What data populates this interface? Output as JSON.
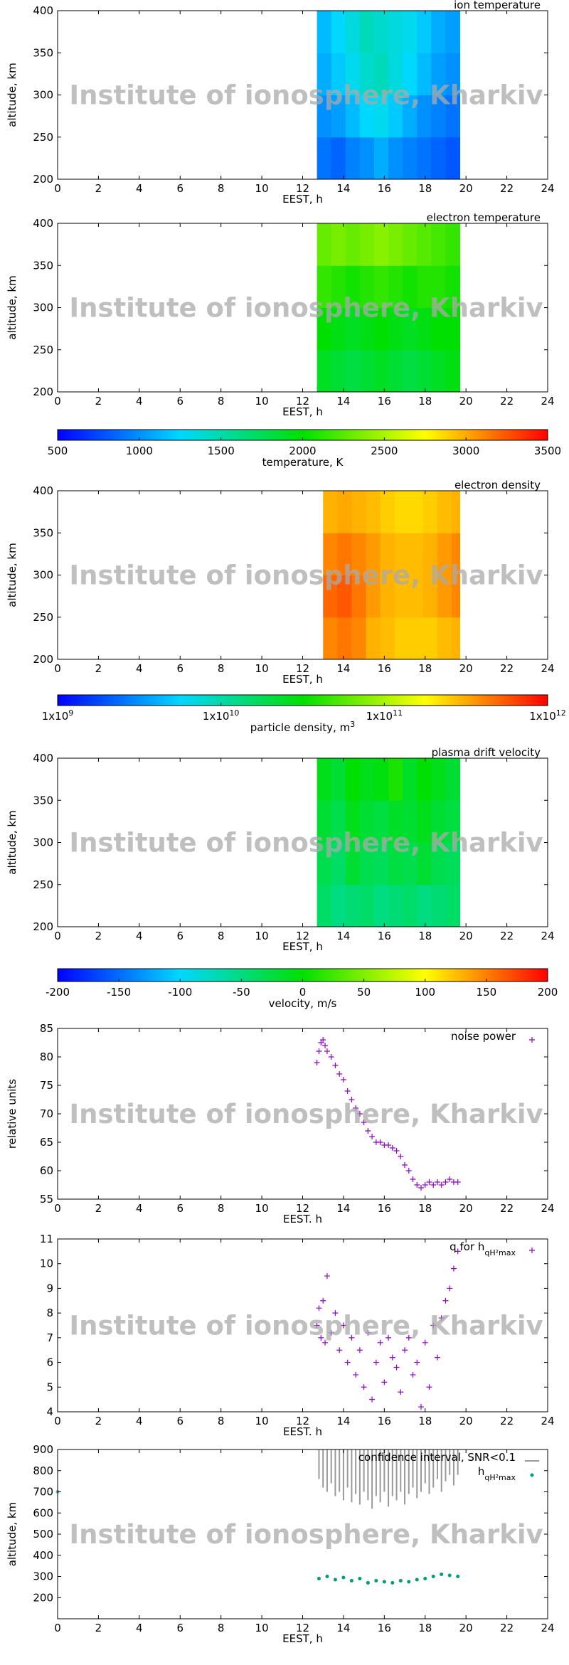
{
  "chart_data": [
    {
      "type": "heatmap",
      "title": "ion temperature",
      "xlabel": "EEST, h",
      "ylabel": "altitude, km",
      "watermark": "Institute of ionosphere, Kharkiv",
      "xlim": [
        0,
        24
      ],
      "xticks": [
        0,
        2,
        4,
        6,
        8,
        10,
        12,
        14,
        16,
        18,
        20,
        22,
        24
      ],
      "ylim": [
        200,
        400
      ],
      "yticks": [
        200,
        250,
        300,
        350,
        400
      ],
      "x_bins": [
        12.7,
        13.4,
        14.1,
        14.8,
        15.5,
        16.2,
        16.9,
        17.6,
        18.3,
        19.0,
        19.7
      ],
      "y_bins": [
        200,
        250,
        300,
        350,
        400
      ],
      "z": [
        [
          900,
          850,
          950,
          1000,
          1100,
          1000,
          950,
          900,
          850,
          800
        ],
        [
          1000,
          1050,
          1150,
          1250,
          1300,
          1200,
          1100,
          1000,
          950,
          900
        ],
        [
          1100,
          1200,
          1300,
          1400,
          1450,
          1350,
          1250,
          1150,
          1050,
          1000
        ],
        [
          1150,
          1250,
          1350,
          1450,
          1400,
          1350,
          1300,
          1200,
          1100,
          1050
        ]
      ]
    },
    {
      "type": "heatmap",
      "title": "electron temperature",
      "xlabel": "EEST, h",
      "ylabel": "altitude, km",
      "watermark": "Institute of ionosphere, Kharkiv",
      "xlim": [
        0,
        24
      ],
      "xticks": [
        0,
        2,
        4,
        6,
        8,
        10,
        12,
        14,
        16,
        18,
        20,
        22,
        24
      ],
      "ylim": [
        200,
        400
      ],
      "yticks": [
        200,
        250,
        300,
        350,
        400
      ],
      "x_bins": [
        12.7,
        13.4,
        14.1,
        14.8,
        15.5,
        16.2,
        16.9,
        17.6,
        18.3,
        19.0,
        19.7
      ],
      "y_bins": [
        200,
        250,
        300,
        350,
        400
      ],
      "z": [
        [
          1900,
          1850,
          1800,
          1850,
          1900,
          1850,
          1800,
          1850,
          1900,
          1950
        ],
        [
          2000,
          1950,
          1900,
          1950,
          2000,
          1950,
          1900,
          1950,
          2000,
          2000
        ],
        [
          2150,
          2100,
          2050,
          2100,
          2150,
          2100,
          2050,
          2100,
          2100,
          2050
        ],
        [
          2300,
          2350,
          2300,
          2350,
          2400,
          2350,
          2300,
          2250,
          2200,
          2150
        ]
      ]
    },
    {
      "type": "colorbar",
      "label": "temperature, K",
      "zlim": [
        500,
        3500
      ],
      "zticks": [
        500,
        1000,
        1500,
        2000,
        2500,
        3000,
        3500
      ],
      "colormap": [
        "#0000ff",
        "#00d8ff",
        "#00e000",
        "#ffff00",
        "#ff0000"
      ]
    },
    {
      "type": "heatmap",
      "title": "electron density",
      "xlabel": "EEST, h",
      "ylabel": "altitude, km",
      "watermark": "Institute of ionosphere, Kharkiv",
      "xlim": [
        0,
        24
      ],
      "xticks": [
        0,
        2,
        4,
        6,
        8,
        10,
        12,
        14,
        16,
        18,
        20,
        22,
        24
      ],
      "ylim": [
        200,
        400
      ],
      "yticks": [
        200,
        250,
        300,
        350,
        400
      ],
      "x_bins": [
        13.0,
        13.7,
        14.4,
        15.1,
        15.8,
        16.5,
        17.2,
        17.9,
        18.6,
        19.3,
        19.7
      ],
      "y_bins": [
        200,
        250,
        300,
        350,
        400
      ],
      "z": [
        [
          400000000000.0,
          450000000000.0,
          400000000000.0,
          300000000000.0,
          280000000000.0,
          250000000000.0,
          250000000000.0,
          250000000000.0,
          280000000000.0,
          300000000000.0
        ],
        [
          500000000000.0,
          550000000000.0,
          450000000000.0,
          350000000000.0,
          300000000000.0,
          280000000000.0,
          280000000000.0,
          300000000000.0,
          350000000000.0,
          400000000000.0
        ],
        [
          400000000000.0,
          450000000000.0,
          400000000000.0,
          350000000000.0,
          300000000000.0,
          280000000000.0,
          280000000000.0,
          300000000000.0,
          350000000000.0,
          400000000000.0
        ],
        [
          300000000000.0,
          320000000000.0,
          300000000000.0,
          280000000000.0,
          250000000000.0,
          230000000000.0,
          230000000000.0,
          250000000000.0,
          280000000000.0,
          300000000000.0
        ]
      ]
    },
    {
      "type": "colorbar",
      "label": "particle density, m",
      "label_exponent": "3",
      "log": true,
      "zlim": [
        1000000000.0,
        1000000000000.0
      ],
      "zticks": [
        {
          "value": 1000000000.0,
          "label": "1x10",
          "exponent": "9"
        },
        {
          "value": 10000000000.0,
          "label": "1x10",
          "exponent": "10"
        },
        {
          "value": 100000000000.0,
          "label": "1x10",
          "exponent": "11"
        },
        {
          "value": 1000000000000.0,
          "label": "1x10",
          "exponent": "12"
        }
      ],
      "colormap": [
        "#0000ff",
        "#00d8ff",
        "#00e000",
        "#ffff00",
        "#ff0000"
      ]
    },
    {
      "type": "heatmap",
      "title": "plasma drift velocity",
      "xlabel": "EEST, h",
      "ylabel": "altitude, km",
      "watermark": "Institute of ionosphere, Kharkiv",
      "xlim": [
        0,
        24
      ],
      "xticks": [
        0,
        2,
        4,
        6,
        8,
        10,
        12,
        14,
        16,
        18,
        20,
        22,
        24
      ],
      "ylim": [
        200,
        400
      ],
      "yticks": [
        200,
        250,
        300,
        350,
        400
      ],
      "x_bins": [
        12.7,
        13.4,
        14.1,
        14.8,
        15.5,
        16.2,
        16.9,
        17.6,
        18.3,
        19.0,
        19.7
      ],
      "y_bins": [
        200,
        250,
        300,
        350,
        400
      ],
      "z": [
        [
          -40,
          -50,
          -45,
          -40,
          -50,
          -45,
          -40,
          -50,
          -45,
          -40
        ],
        [
          -30,
          -40,
          -20,
          -30,
          -35,
          -25,
          -30,
          -20,
          -30,
          -35
        ],
        [
          -20,
          -30,
          -10,
          -20,
          -25,
          -15,
          -20,
          -10,
          -20,
          -25
        ],
        [
          -10,
          -20,
          0,
          -10,
          -5,
          10,
          -15,
          0,
          -10,
          -20
        ]
      ]
    },
    {
      "type": "colorbar",
      "label": "velocity, m/s",
      "zlim": [
        -200,
        200
      ],
      "zticks": [
        -200,
        -150,
        -100,
        -50,
        0,
        50,
        100,
        150,
        200
      ],
      "colormap": [
        "#0000ff",
        "#00d8ff",
        "#00e000",
        "#ffff00",
        "#ff0000"
      ]
    },
    {
      "type": "scatter",
      "xlabel": "EEST. h",
      "ylabel": "relative units",
      "watermark": "Institute of ionosphere, Kharkiv",
      "xlim": [
        0,
        24
      ],
      "xticks": [
        0,
        2,
        4,
        6,
        8,
        10,
        12,
        14,
        16,
        18,
        20,
        22,
        24
      ],
      "ylim": [
        55,
        85
      ],
      "yticks": [
        55,
        60,
        65,
        70,
        75,
        80,
        85
      ],
      "series": [
        {
          "name": "noise power",
          "style": "plus",
          "color": "#9400d3",
          "x": [
            12.7,
            12.8,
            12.9,
            13.0,
            13.1,
            13.2,
            13.4,
            13.6,
            13.8,
            14.0,
            14.2,
            14.4,
            14.6,
            14.8,
            15.0,
            15.2,
            15.4,
            15.6,
            15.8,
            16.0,
            16.2,
            16.4,
            16.6,
            16.8,
            17.0,
            17.2,
            17.4,
            17.6,
            17.8,
            18.0,
            18.2,
            18.4,
            18.6,
            18.8,
            19.0,
            19.2,
            19.4,
            19.6
          ],
          "values": [
            79,
            81,
            82.5,
            83,
            82,
            81,
            80,
            78.5,
            77,
            76,
            74,
            72.5,
            71,
            70,
            68.5,
            67,
            66,
            65,
            65,
            64.5,
            64.5,
            64,
            63.5,
            62.5,
            61,
            60,
            58.5,
            57.5,
            57,
            57.5,
            58,
            57.5,
            58,
            57.5,
            58,
            58.5,
            58,
            58
          ]
        }
      ]
    },
    {
      "type": "scatter",
      "xlabel": "EEST. h",
      "watermark": "Institute of ionosphere, Kharkiv",
      "xlim": [
        0,
        24
      ],
      "xticks": [
        0,
        2,
        4,
        6,
        8,
        10,
        12,
        14,
        16,
        18,
        20,
        22,
        24
      ],
      "ylim": [
        4,
        11
      ],
      "yticks": [
        4,
        5,
        6,
        7,
        8,
        9,
        10,
        11
      ],
      "series": [
        {
          "name": "q for h",
          "name_sub": "qH²max",
          "style": "plus",
          "color": "#9400d3",
          "x": [
            12.7,
            12.8,
            12.9,
            13.0,
            13.1,
            13.2,
            13.4,
            13.6,
            13.8,
            14.0,
            14.2,
            14.4,
            14.6,
            14.8,
            15.0,
            15.2,
            15.4,
            15.6,
            15.8,
            16.0,
            16.2,
            16.4,
            16.6,
            16.8,
            17.0,
            17.2,
            17.4,
            17.6,
            17.8,
            18.0,
            18.2,
            18.4,
            18.6,
            18.8,
            19.0,
            19.2,
            19.4,
            19.6
          ],
          "values": [
            7.5,
            8.2,
            7.0,
            8.5,
            6.8,
            9.5,
            7.2,
            8.0,
            6.5,
            7.5,
            6.0,
            7.0,
            5.5,
            6.5,
            5.0,
            7.2,
            4.5,
            6.0,
            6.8,
            5.2,
            7.0,
            6.2,
            5.8,
            4.8,
            6.5,
            7.0,
            5.5,
            6.0,
            4.2,
            6.8,
            5.0,
            7.5,
            6.2,
            7.8,
            8.5,
            9.0,
            9.8,
            10.5
          ]
        }
      ]
    },
    {
      "type": "scatter",
      "xlabel": "EEST, h",
      "ylabel": "altitude, km",
      "watermark": "Institute of ionosphere, Kharkiv",
      "xlim": [
        0,
        24
      ],
      "xticks": [
        0,
        2,
        4,
        6,
        8,
        10,
        12,
        14,
        16,
        18,
        20,
        22,
        24
      ],
      "ylim": [
        100,
        900
      ],
      "yticks": [
        200,
        300,
        400,
        500,
        600,
        700,
        800,
        900
      ],
      "series": [
        {
          "name": "confidence interval, SNR<0.1",
          "style": "range",
          "color": "#999999",
          "x": [
            12.8,
            13.0,
            13.2,
            13.4,
            13.6,
            13.8,
            14.0,
            14.2,
            14.4,
            14.6,
            14.8,
            15.0,
            15.2,
            15.4,
            15.6,
            15.8,
            16.0,
            16.2,
            16.4,
            16.6,
            16.8,
            17.0,
            17.2,
            17.4,
            17.6,
            17.8,
            18.0,
            18.2,
            18.4,
            18.6,
            18.8,
            19.0,
            19.2,
            19.4,
            19.6
          ],
          "high": [
            900,
            900,
            900,
            900,
            900,
            900,
            900,
            900,
            900,
            900,
            900,
            900,
            900,
            900,
            900,
            900,
            900,
            900,
            900,
            900,
            900,
            900,
            900,
            900,
            900,
            900,
            900,
            900,
            900,
            900,
            900,
            900,
            900,
            900,
            900
          ],
          "low": [
            760,
            720,
            700,
            740,
            680,
            700,
            660,
            720,
            650,
            690,
            640,
            700,
            660,
            620,
            680,
            650,
            700,
            630,
            680,
            660,
            700,
            640,
            690,
            720,
            670,
            700,
            740,
            690,
            720,
            760,
            700,
            750,
            780,
            730,
            780
          ]
        },
        {
          "name": "h",
          "name_sub": "qH²max",
          "style": "dot",
          "color": "#009e73",
          "x": [
            12.8,
            13.2,
            13.6,
            14.0,
            14.4,
            14.8,
            15.2,
            15.6,
            16.0,
            16.4,
            16.8,
            17.2,
            17.6,
            18.0,
            18.4,
            18.8,
            19.2,
            19.6
          ],
          "values": [
            290,
            300,
            285,
            295,
            280,
            290,
            270,
            280,
            275,
            270,
            280,
            275,
            285,
            290,
            300,
            310,
            305,
            300
          ]
        },
        {
          "style": "dot",
          "color": "#56b4e9",
          "x": [
            0
          ],
          "values": [
            700
          ]
        }
      ]
    }
  ]
}
